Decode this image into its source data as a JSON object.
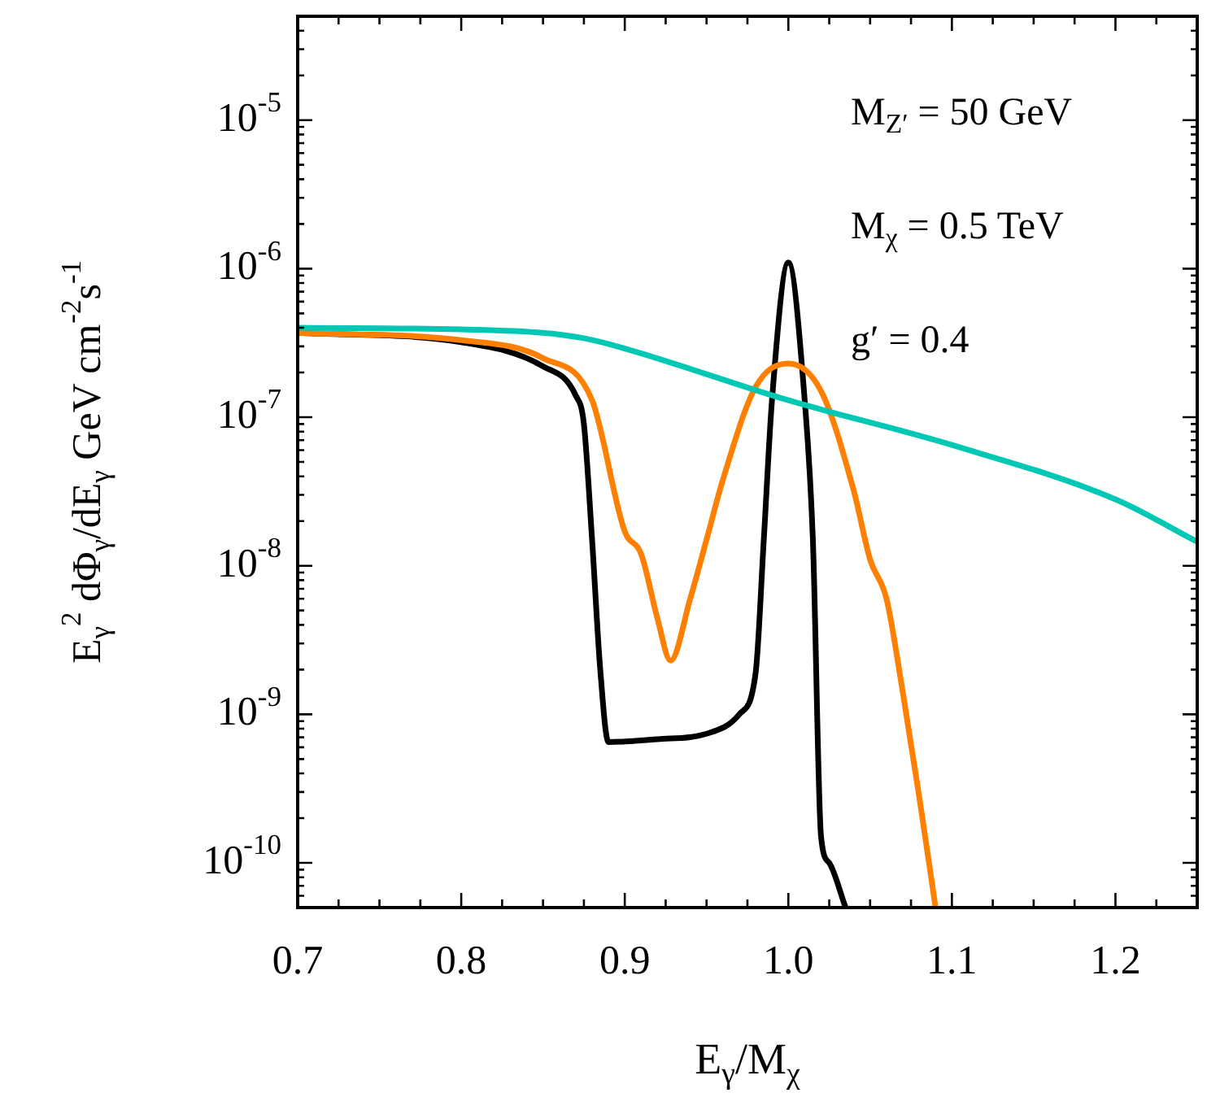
{
  "chart_data": {
    "type": "line",
    "xlabel": "E$_{γ}$/M$_{χ}$",
    "ylabel": "E$_{γ}$$^{2}$ dΦ$_{γ}$/dE$_{γ}$ GeV cm$^{-2}$s$^{-1}$",
    "annotations": [
      "M$_{Z′}$ = 50 GeV",
      "M$_{χ}$ = 0.5 TeV",
      "g′ = 0.4"
    ],
    "log": "y",
    "grid": false,
    "legend": false,
    "marker": "none",
    "line_style": "solid",
    "xlim": [
      0.7,
      1.25
    ],
    "xticks": [
      0.7,
      0.8,
      0.9,
      {
        "value": 1,
        "label": "1.0"
      },
      1.1,
      1.2
    ],
    "ylim": [
      5e-11,
      5e-05
    ],
    "yticks": [
      {
        "value": 1e-10,
        "label": "10$^{-10}$"
      },
      {
        "value": 1e-09,
        "label": "10$^{-9}$"
      },
      {
        "value": 1e-08,
        "label": "10$^{-8}$"
      },
      {
        "value": 1e-07,
        "label": "10$^{-7}$"
      },
      {
        "value": 1e-06,
        "label": "10$^{-6}$"
      },
      {
        "value": 1e-05,
        "label": "10$^{-5}$"
      }
    ],
    "series": [
      {
        "color": "#00c8b4",
        "x": [
          0.7,
          0.8,
          0.85,
          0.875,
          0.9,
          1.0,
          1.1,
          1.2,
          1.25
        ],
        "values": [
          4e-07,
          3.9e-07,
          3.7e-07,
          3.4e-07,
          2.9e-07,
          1.3e-07,
          6.5e-08,
          2.8e-08,
          1.45e-08
        ]
      },
      {
        "color": "#ff8000",
        "x": [
          0.7,
          0.8,
          0.85,
          0.88,
          0.9,
          0.91,
          0.92,
          0.928,
          0.94,
          0.95,
          0.96,
          0.98,
          1.0,
          1.02,
          1.04,
          1.05,
          1.06,
          1.07,
          1.08,
          1.09
        ],
        "values": [
          3.7e-07,
          3.3e-07,
          2.5e-07,
          1.3e-07,
          1.7e-08,
          1.2e-08,
          4.4e-09,
          2.3e-09,
          6e-09,
          1.5e-08,
          3.8e-08,
          1.6e-07,
          2.3e-07,
          1.5e-07,
          3.2e-08,
          1.1e-08,
          6e-09,
          1.4e-09,
          2.8e-10,
          5e-11
        ]
      },
      {
        "color": "#000000",
        "x": [
          0.7,
          0.8,
          0.85,
          0.87,
          0.875,
          0.88,
          0.885,
          0.89,
          0.92,
          0.95,
          0.97,
          0.98,
          0.985,
          0.99,
          1.0,
          1.01,
          1.015,
          1.02,
          1.025,
          1.035
        ],
        "values": [
          3.7e-07,
          3.2e-07,
          2.2e-07,
          1.4e-07,
          9e-08,
          1.5e-08,
          2e-09,
          6.5e-10,
          6.8e-10,
          7.4e-10,
          1e-09,
          1.9e-09,
          1.5e-08,
          1.3e-07,
          1.1e-06,
          1.3e-07,
          1.5e-08,
          1.5e-10,
          1e-10,
          5e-11
        ]
      }
    ]
  }
}
